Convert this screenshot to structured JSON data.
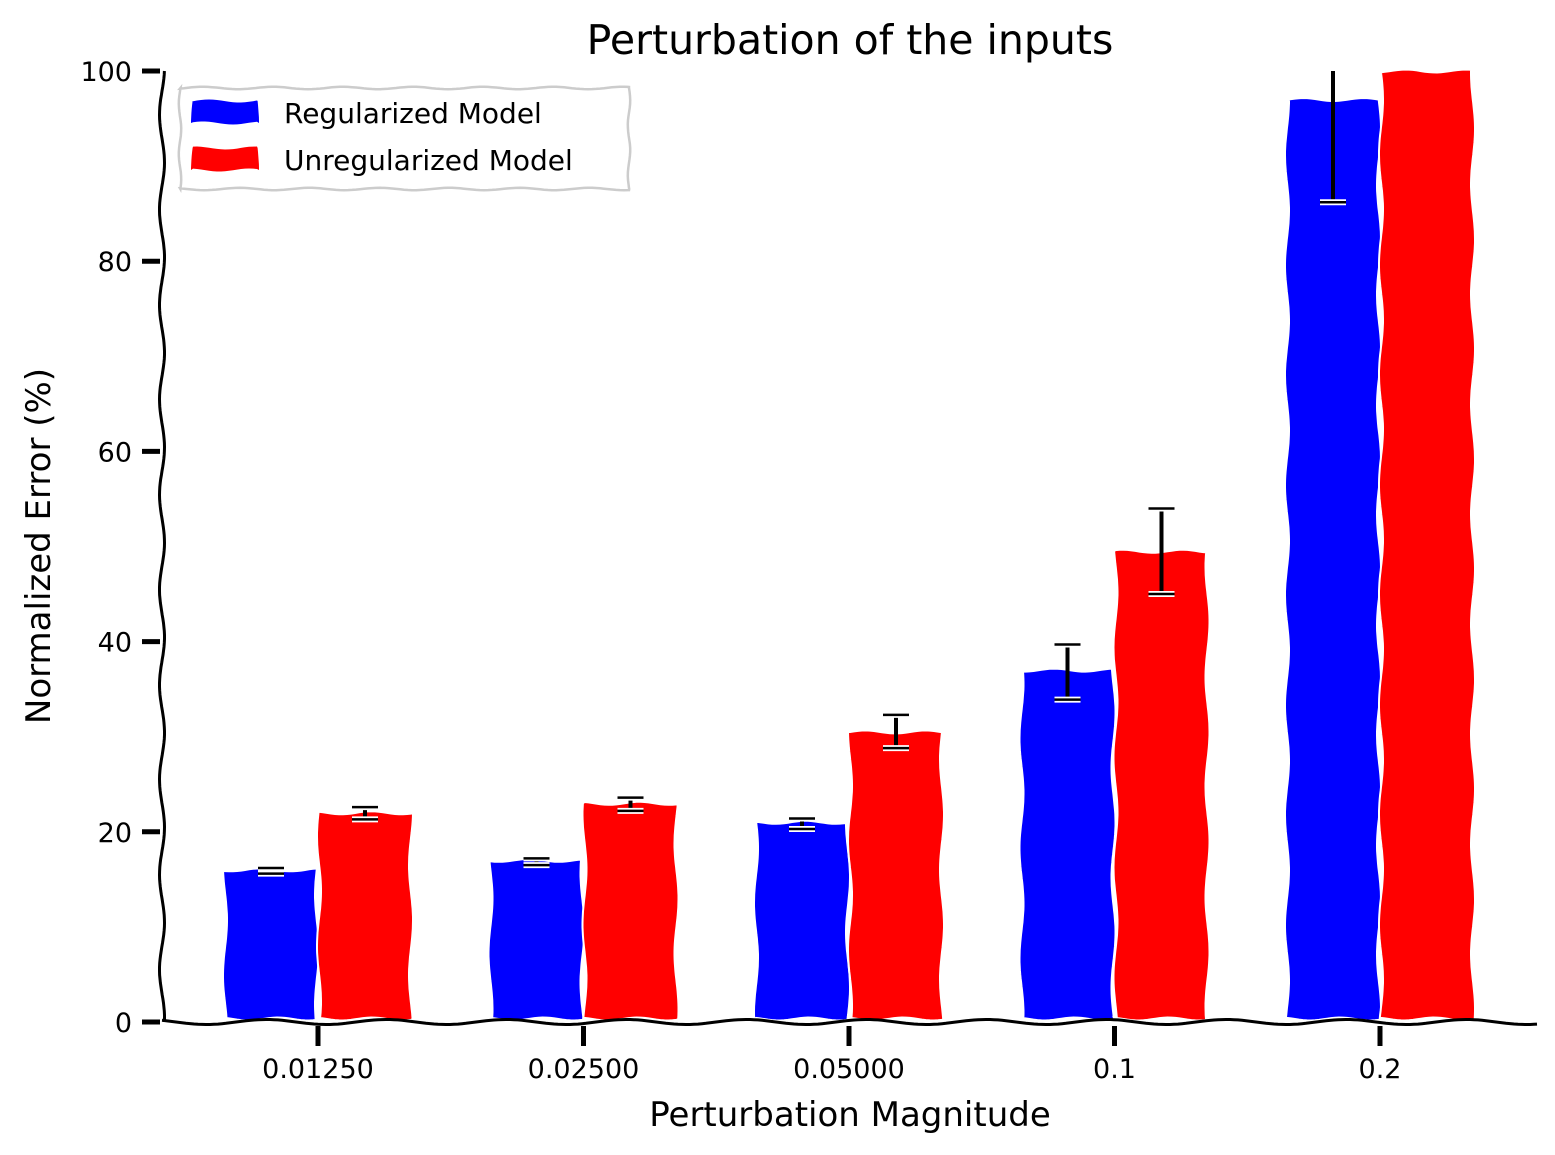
{
  "chart_data": {
    "type": "bar",
    "title": "Perturbation of the inputs",
    "xlabel": "Perturbation Magnitude",
    "ylabel": "Normalized Error (%)",
    "categories": [
      "0.01250",
      "0.02500",
      "0.05000",
      "0.1",
      "0.2"
    ],
    "ylim": [
      0,
      100
    ],
    "yticks": [
      "0",
      "20",
      "40",
      "60",
      "80",
      "100"
    ],
    "grid": false,
    "legend_position": "top-left",
    "series": [
      {
        "name": "Regularized Model",
        "color": "#0000ff",
        "values": [
          16,
          17,
          21,
          37,
          97
        ],
        "err_low": [
          15.6,
          16.5,
          20.3,
          33.9,
          86.2
        ],
        "err_high": [
          16.2,
          17.2,
          21.4,
          39.7,
          100
        ]
      },
      {
        "name": "Unregularized Model",
        "color": "#ff0000",
        "values": [
          22,
          23,
          30.5,
          49.5,
          100
        ],
        "err_low": [
          21.3,
          22.2,
          28.8,
          45,
          100
        ],
        "err_high": [
          22.6,
          23.6,
          32.3,
          54,
          100
        ]
      }
    ]
  }
}
